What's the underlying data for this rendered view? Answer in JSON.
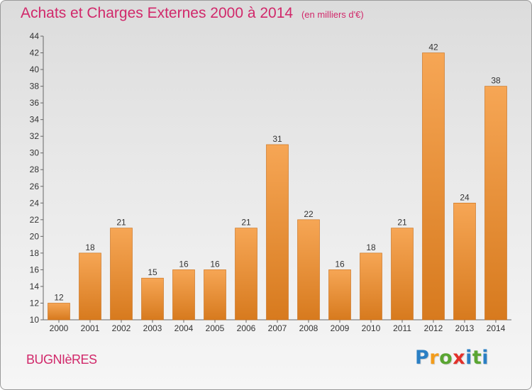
{
  "chart_data": {
    "type": "bar",
    "title": "Achats et Charges Externes 2000 à 2014",
    "subtitle": "(en milliers d'€)",
    "categories": [
      "2000",
      "2001",
      "2002",
      "2003",
      "2004",
      "2005",
      "2006",
      "2007",
      "2008",
      "2009",
      "2010",
      "2011",
      "2012",
      "2013",
      "2014"
    ],
    "values": [
      12,
      18,
      21,
      15,
      16,
      16,
      21,
      31,
      22,
      16,
      18,
      21,
      42,
      24,
      38
    ],
    "ylim": [
      10,
      44
    ],
    "yticks": [
      "10",
      "12",
      "14",
      "16",
      "18",
      "20",
      "22",
      "24",
      "26",
      "28",
      "30",
      "32",
      "34",
      "36",
      "38",
      "40",
      "42",
      "44"
    ],
    "xlabel": "",
    "ylabel": "",
    "grid": false,
    "bar_color_light": "#f6a655",
    "bar_color_dark": "#d77a1e"
  },
  "commune": "BUGNIèRES",
  "logo": {
    "letters": [
      "P",
      "r",
      "o",
      "x",
      "i",
      "t",
      "i"
    ],
    "colors": [
      "#2a7fc4",
      "#f39c1b",
      "#5aa532",
      "#e2312b",
      "#2a7fc4",
      "#5aa532",
      "#2a7fc4"
    ]
  }
}
